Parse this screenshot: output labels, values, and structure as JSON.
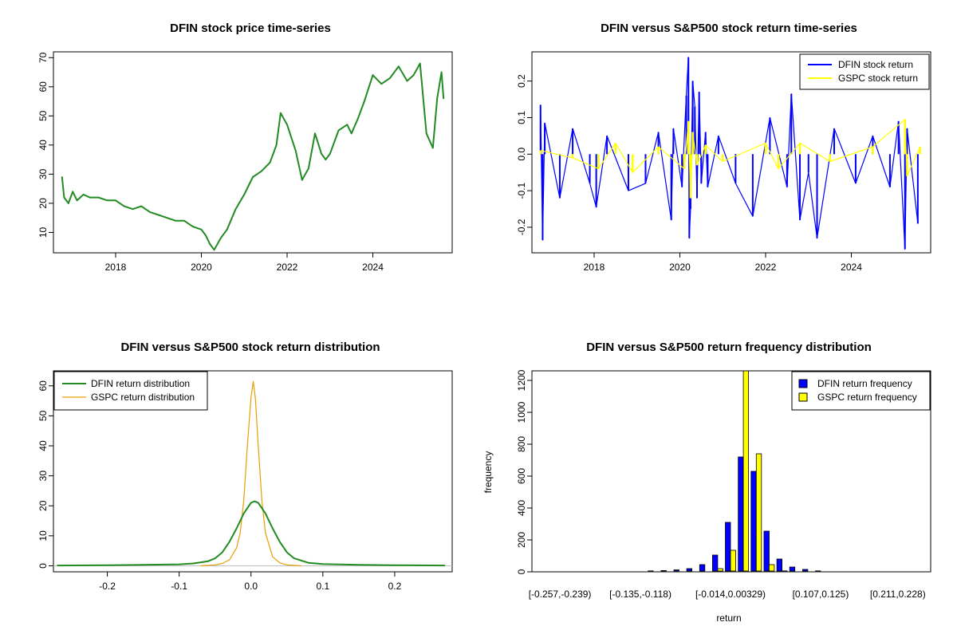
{
  "chart_data": [
    {
      "type": "line",
      "title": "DFIN stock price time-series",
      "xlabel": "",
      "ylabel": "",
      "xlim": [
        2016.55,
        2025.85
      ],
      "ylim": [
        3,
        72
      ],
      "x_ticks": [
        {
          "value": 2018,
          "label": "2018"
        },
        {
          "value": 2020,
          "label": "2020"
        },
        {
          "value": 2022,
          "label": "2022"
        },
        {
          "value": 2024,
          "label": "2024"
        }
      ],
      "y_ticks": [
        {
          "value": 10,
          "label": "10"
        },
        {
          "value": 20,
          "label": "20"
        },
        {
          "value": 30,
          "label": "30"
        },
        {
          "value": 40,
          "label": "40"
        },
        {
          "value": 50,
          "label": "50"
        },
        {
          "value": 60,
          "label": "60"
        },
        {
          "value": 70,
          "label": "70"
        }
      ],
      "series": [
        {
          "color": "#228B22",
          "x": [
            2016.75,
            2016.8,
            2016.9,
            2017.0,
            2017.1,
            2017.25,
            2017.4,
            2017.6,
            2017.8,
            2018.0,
            2018.2,
            2018.4,
            2018.6,
            2018.8,
            2019.0,
            2019.2,
            2019.4,
            2019.6,
            2019.8,
            2020.0,
            2020.1,
            2020.2,
            2020.3,
            2020.45,
            2020.6,
            2020.8,
            2021.0,
            2021.2,
            2021.4,
            2021.6,
            2021.75,
            2021.85,
            2022.0,
            2022.2,
            2022.35,
            2022.5,
            2022.65,
            2022.8,
            2022.9,
            2023.0,
            2023.2,
            2023.4,
            2023.5,
            2023.65,
            2023.8,
            2024.0,
            2024.2,
            2024.4,
            2024.6,
            2024.8,
            2024.95,
            2025.1,
            2025.25,
            2025.4,
            2025.5,
            2025.6,
            2025.65
          ],
          "values": [
            29,
            22,
            20,
            24,
            21,
            23,
            22,
            22,
            21,
            21,
            19,
            18,
            19,
            17,
            16,
            15,
            14,
            14,
            12,
            11,
            9,
            6,
            4,
            8,
            11,
            18,
            23,
            29,
            31,
            34,
            40,
            51,
            47,
            38,
            28,
            32,
            44,
            37,
            35,
            37,
            45,
            47,
            44,
            49,
            55,
            64,
            61,
            63,
            67,
            62,
            64,
            68,
            44,
            39,
            56,
            65,
            56
          ]
        }
      ]
    },
    {
      "type": "line",
      "title": "DFIN versus S&P500 stock return time-series",
      "xlabel": "",
      "ylabel": "",
      "xlim": [
        2016.55,
        2025.85
      ],
      "ylim": [
        -0.27,
        0.28
      ],
      "x_ticks": [
        {
          "value": 2018,
          "label": "2018"
        },
        {
          "value": 2020,
          "label": "2020"
        },
        {
          "value": 2022,
          "label": "2022"
        },
        {
          "value": 2024,
          "label": "2024"
        }
      ],
      "y_ticks": [
        {
          "value": -0.2,
          "label": "-0.2"
        },
        {
          "value": -0.1,
          "label": "-0.1"
        },
        {
          "value": 0.0,
          "label": "0.0"
        },
        {
          "value": 0.1,
          "label": "0.1"
        },
        {
          "value": 0.2,
          "label": "0.2"
        }
      ],
      "legend": {
        "position": "top-right"
      },
      "series": [
        {
          "name": "DFIN stock return",
          "color": "#0000FF",
          "x": [
            2016.75,
            2016.8,
            2016.85,
            2017.2,
            2017.5,
            2017.9,
            2018.05,
            2018.3,
            2018.8,
            2019.2,
            2019.5,
            2019.8,
            2019.85,
            2020.05,
            2020.15,
            2020.2,
            2020.22,
            2020.25,
            2020.3,
            2020.35,
            2020.4,
            2020.45,
            2020.5,
            2020.6,
            2020.65,
            2020.9,
            2021.3,
            2021.7,
            2022.1,
            2022.5,
            2022.6,
            2022.8,
            2023.0,
            2023.2,
            2023.6,
            2024.1,
            2024.5,
            2024.9,
            2025.1,
            2025.25,
            2025.3,
            2025.55
          ],
          "values": [
            0.135,
            -0.235,
            0.085,
            -0.12,
            0.07,
            -0.08,
            -0.145,
            0.05,
            -0.1,
            -0.08,
            0.06,
            -0.18,
            0.07,
            -0.09,
            0.16,
            0.265,
            -0.23,
            -0.15,
            0.2,
            0.13,
            -0.12,
            0.17,
            -0.08,
            0.06,
            -0.09,
            0.05,
            -0.08,
            -0.17,
            0.1,
            -0.09,
            0.165,
            -0.18,
            -0.05,
            -0.23,
            0.07,
            -0.08,
            0.05,
            -0.09,
            0.09,
            -0.26,
            0.07,
            -0.19
          ]
        },
        {
          "name": "GSPC stock return",
          "color": "#FFFF00",
          "x": [
            2016.75,
            2017.5,
            2018.1,
            2018.5,
            2018.9,
            2019.5,
            2020.1,
            2020.2,
            2020.25,
            2020.3,
            2020.4,
            2020.6,
            2021.0,
            2022.0,
            2022.3,
            2022.8,
            2023.5,
            2024.5,
            2025.25,
            2025.3,
            2025.6
          ],
          "values": [
            0.01,
            -0.01,
            -0.04,
            0.03,
            -0.05,
            0.02,
            -0.04,
            0.09,
            -0.12,
            0.06,
            -0.03,
            0.025,
            -0.02,
            0.03,
            -0.04,
            0.03,
            -0.02,
            0.02,
            0.095,
            -0.06,
            0.02
          ]
        }
      ]
    },
    {
      "type": "line",
      "title": "DFIN versus S&P500 stock return distribution",
      "xlabel": "",
      "ylabel": "",
      "xlim": [
        -0.275,
        0.28
      ],
      "ylim": [
        -2,
        65
      ],
      "x_ticks": [
        {
          "value": -0.2,
          "label": "-0.2"
        },
        {
          "value": -0.1,
          "label": "-0.1"
        },
        {
          "value": 0.0,
          "label": "0.0"
        },
        {
          "value": 0.1,
          "label": "0.1"
        },
        {
          "value": 0.2,
          "label": "0.2"
        }
      ],
      "y_ticks": [
        {
          "value": 0,
          "label": "0"
        },
        {
          "value": 10,
          "label": "10"
        },
        {
          "value": 20,
          "label": "20"
        },
        {
          "value": 30,
          "label": "30"
        },
        {
          "value": 40,
          "label": "40"
        },
        {
          "value": 50,
          "label": "50"
        },
        {
          "value": 60,
          "label": "60"
        }
      ],
      "legend": {
        "position": "top-left"
      },
      "series": [
        {
          "name": "DFIN return distribution",
          "color": "#228B22",
          "x": [
            -0.27,
            -0.2,
            -0.15,
            -0.1,
            -0.08,
            -0.06,
            -0.05,
            -0.04,
            -0.03,
            -0.02,
            -0.01,
            0.0,
            0.005,
            0.01,
            0.02,
            0.03,
            0.04,
            0.05,
            0.06,
            0.08,
            0.1,
            0.15,
            0.2,
            0.27
          ],
          "values": [
            0.1,
            0.2,
            0.3,
            0.5,
            0.8,
            1.5,
            2.5,
            4.5,
            8,
            12.5,
            17.5,
            21,
            21.5,
            21,
            17.5,
            12.5,
            8,
            4.5,
            2.5,
            1,
            0.6,
            0.3,
            0.2,
            0.1
          ]
        },
        {
          "name": "GSPC return distribution",
          "color": "#E69F00",
          "x": [
            -0.07,
            -0.05,
            -0.04,
            -0.03,
            -0.02,
            -0.015,
            -0.01,
            -0.005,
            0.0,
            0.003,
            0.006,
            0.01,
            0.015,
            0.02,
            0.03,
            0.04,
            0.05,
            0.07
          ],
          "values": [
            0,
            0.3,
            0.8,
            2,
            6,
            11,
            22,
            40,
            56,
            61.5,
            56,
            40,
            22,
            11,
            3,
            1,
            0.3,
            0
          ]
        }
      ]
    },
    {
      "type": "bar",
      "title": "DFIN versus S&P500 return frequency distribution",
      "xlabel": "return",
      "ylabel": "frequency",
      "ylim": [
        0,
        1260
      ],
      "y_ticks": [
        {
          "value": 0,
          "label": "0"
        },
        {
          "value": 200,
          "label": "200"
        },
        {
          "value": 400,
          "label": "400"
        },
        {
          "value": 600,
          "label": "600"
        },
        {
          "value": 800,
          "label": "800"
        },
        {
          "value": 1000,
          "label": "1000"
        },
        {
          "value": 1200,
          "label": "1200"
        }
      ],
      "category_labels_shown": [
        {
          "index": 0,
          "label": "[-0.257,-0.239)"
        },
        {
          "index": 7,
          "label": "[-0.135,-0.118)"
        },
        {
          "index": 14,
          "label": "[-0.014,0.00329)"
        },
        {
          "index": 21,
          "label": "[0.107,0.125)"
        },
        {
          "index": 27,
          "label": "[0.211,0.228)"
        }
      ],
      "legend": {
        "position": "top-right"
      },
      "series": [
        {
          "name": "DFIN return frequency",
          "color": "#0000FF",
          "values": [
            2,
            4,
            1,
            2,
            3,
            2,
            5,
            4,
            6,
            8,
            12,
            20,
            45,
            105,
            310,
            720,
            630,
            255,
            80,
            30,
            15,
            6,
            4,
            3,
            2,
            2,
            1,
            2,
            1
          ]
        },
        {
          "name": "GSPC return frequency",
          "color": "#FFFF00",
          "values": [
            0,
            0,
            0,
            0,
            0,
            0,
            0,
            0,
            0,
            0,
            0,
            1,
            4,
            20,
            135,
            1260,
            740,
            45,
            6,
            1,
            0,
            0,
            0,
            0,
            0,
            0,
            0,
            0,
            0
          ]
        }
      ]
    }
  ]
}
